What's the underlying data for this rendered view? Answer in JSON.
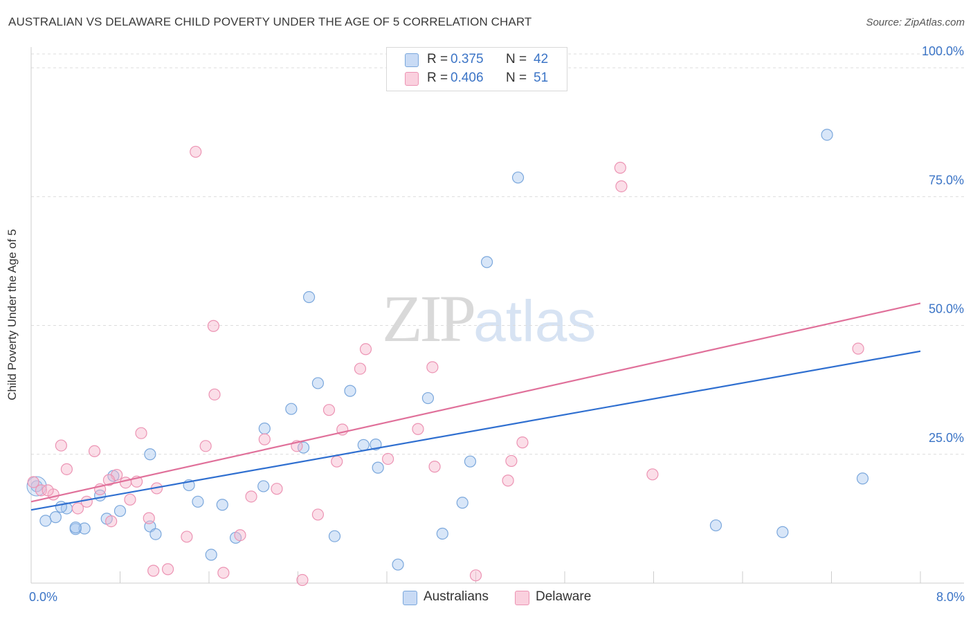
{
  "title": "AUSTRALIAN VS DELAWARE CHILD POVERTY UNDER THE AGE OF 5 CORRELATION CHART",
  "source": "Source: ZipAtlas.com",
  "watermark": {
    "zip": "ZIP",
    "atlas": "atlas"
  },
  "legend_top": [
    {
      "r_label": "R =",
      "r_value": "0.375",
      "n_label": "N =",
      "n_value": "42",
      "color": "#a9c8ef"
    },
    {
      "r_label": "R =",
      "r_value": "0.406",
      "n_label": "N =",
      "n_value": "51",
      "color": "#f6b5cb"
    }
  ],
  "legend_bottom": [
    {
      "label": "Australians",
      "color": "#a9c8ef"
    },
    {
      "label": "Delaware",
      "color": "#f6b5cb"
    }
  ],
  "colors": {
    "australians_fill": "#a9c8ef",
    "australians_stroke": "#7aa7dc",
    "australians_line": "#2f6fd0",
    "delaware_fill": "#f6b5cb",
    "delaware_stroke": "#ec93b3",
    "delaware_line": "#e0709a",
    "tick_label": "#3b74c6",
    "grid": "#dcdcdc"
  },
  "chart_data": {
    "type": "scatter",
    "title": "AUSTRALIAN VS DELAWARE CHILD POVERTY UNDER THE AGE OF 5 CORRELATION CHART",
    "xlabel": "",
    "ylabel": "Child Poverty Under the Age of 5",
    "xlim": [
      0,
      8
    ],
    "ylim": [
      0,
      100
    ],
    "x_tick_labels": [
      {
        "value": 0,
        "label": "0.0%"
      },
      {
        "value": 8,
        "label": "8.0%"
      }
    ],
    "y_tick_labels": [
      {
        "value": 25,
        "label": "25.0%"
      },
      {
        "value": 50,
        "label": "50.0%"
      },
      {
        "value": 75,
        "label": "75.0%"
      },
      {
        "value": 100,
        "label": "100.0%"
      }
    ],
    "grid": true,
    "legend_position": "top-center",
    "series": [
      {
        "name": "Australians",
        "r": 0.375,
        "n": 42,
        "trend": {
          "x": [
            0,
            8
          ],
          "y": [
            14.2,
            45.0
          ]
        },
        "points": [
          [
            0.05,
            18.8
          ],
          [
            0.13,
            12.1
          ],
          [
            0.22,
            12.8
          ],
          [
            0.32,
            14.5
          ],
          [
            0.4,
            10.5
          ],
          [
            0.48,
            10.6
          ],
          [
            0.62,
            17.0
          ],
          [
            0.68,
            12.5
          ],
          [
            0.74,
            20.8
          ],
          [
            1.07,
            25.0
          ],
          [
            1.07,
            11.0
          ],
          [
            1.12,
            9.5
          ],
          [
            1.42,
            19.0
          ],
          [
            1.5,
            15.8
          ],
          [
            1.62,
            5.5
          ],
          [
            1.72,
            15.2
          ],
          [
            1.84,
            8.8
          ],
          [
            2.1,
            30.0
          ],
          [
            2.09,
            18.8
          ],
          [
            2.34,
            33.8
          ],
          [
            2.45,
            26.3
          ],
          [
            2.5,
            55.5
          ],
          [
            2.58,
            38.8
          ],
          [
            2.73,
            9.1
          ],
          [
            2.87,
            37.3
          ],
          [
            2.99,
            26.8
          ],
          [
            3.1,
            26.9
          ],
          [
            3.12,
            22.4
          ],
          [
            3.3,
            3.6
          ],
          [
            3.57,
            35.9
          ],
          [
            3.7,
            9.6
          ],
          [
            3.88,
            15.6
          ],
          [
            3.95,
            23.6
          ],
          [
            4.1,
            62.3
          ],
          [
            4.38,
            78.7
          ],
          [
            7.16,
            87.0
          ],
          [
            6.16,
            11.2
          ],
          [
            6.76,
            9.9
          ],
          [
            7.48,
            20.3
          ],
          [
            0.27,
            14.8
          ],
          [
            0.4,
            10.8
          ],
          [
            0.8,
            14.0
          ]
        ]
      },
      {
        "name": "Delaware",
        "r": 0.406,
        "n": 51,
        "trend": {
          "x": [
            0,
            8
          ],
          "y": [
            15.8,
            54.3
          ]
        },
        "points": [
          [
            0.02,
            19.6
          ],
          [
            0.09,
            18.0
          ],
          [
            0.2,
            17.2
          ],
          [
            0.27,
            26.7
          ],
          [
            0.32,
            22.1
          ],
          [
            0.42,
            14.5
          ],
          [
            0.5,
            15.8
          ],
          [
            0.57,
            25.6
          ],
          [
            0.62,
            18.2
          ],
          [
            0.72,
            12.0
          ],
          [
            0.77,
            21.0
          ],
          [
            0.85,
            19.5
          ],
          [
            0.89,
            16.2
          ],
          [
            0.95,
            19.7
          ],
          [
            0.99,
            29.1
          ],
          [
            1.06,
            12.6
          ],
          [
            1.1,
            2.4
          ],
          [
            1.13,
            18.4
          ],
          [
            1.23,
            2.7
          ],
          [
            1.4,
            9.0
          ],
          [
            1.48,
            83.7
          ],
          [
            1.57,
            26.6
          ],
          [
            1.64,
            49.9
          ],
          [
            1.65,
            36.6
          ],
          [
            1.73,
            2.0
          ],
          [
            1.88,
            9.3
          ],
          [
            1.98,
            16.8
          ],
          [
            2.1,
            27.9
          ],
          [
            2.21,
            18.3
          ],
          [
            2.39,
            26.6
          ],
          [
            2.44,
            0.6
          ],
          [
            2.58,
            13.3
          ],
          [
            2.68,
            33.6
          ],
          [
            2.75,
            23.6
          ],
          [
            2.8,
            29.8
          ],
          [
            2.96,
            41.6
          ],
          [
            3.01,
            45.4
          ],
          [
            3.21,
            24.1
          ],
          [
            3.48,
            29.9
          ],
          [
            3.61,
            41.9
          ],
          [
            3.63,
            22.6
          ],
          [
            4.0,
            1.5
          ],
          [
            4.29,
            19.9
          ],
          [
            4.32,
            23.7
          ],
          [
            4.42,
            27.3
          ],
          [
            5.3,
            80.6
          ],
          [
            5.31,
            77.0
          ],
          [
            5.59,
            21.1
          ],
          [
            7.44,
            45.5
          ],
          [
            0.15,
            18.0
          ],
          [
            0.7,
            20.0
          ]
        ]
      }
    ]
  }
}
